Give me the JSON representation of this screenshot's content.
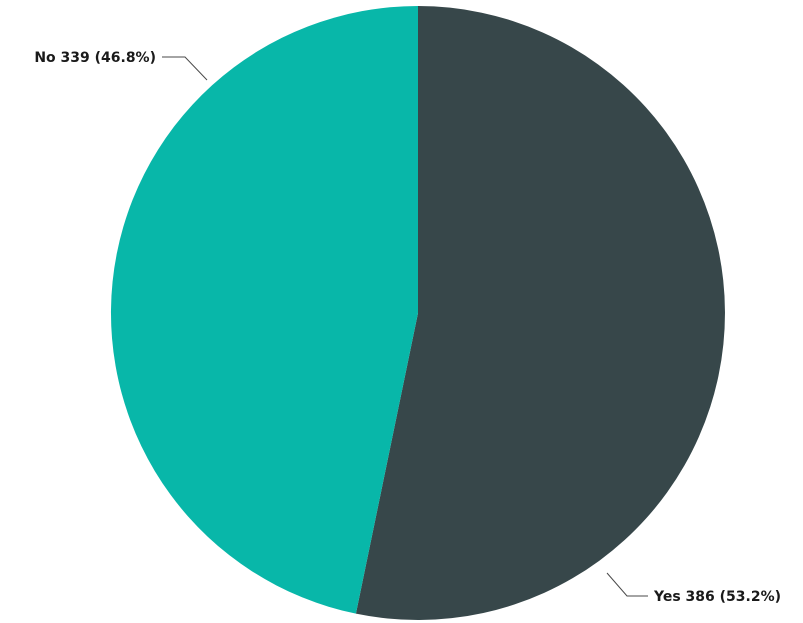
{
  "chart_data": {
    "type": "pie",
    "title": "",
    "slices": [
      {
        "label": "Yes",
        "value": 386,
        "percent": 53.2,
        "color": "#37474a",
        "display": "Yes 386 (53.2%)"
      },
      {
        "label": "No",
        "value": 339,
        "percent": 46.8,
        "color": "#08b7a9",
        "display": "No 339 (46.8%)"
      }
    ],
    "start_angle": "12 o'clock",
    "direction": "clockwise",
    "legend": "none"
  }
}
